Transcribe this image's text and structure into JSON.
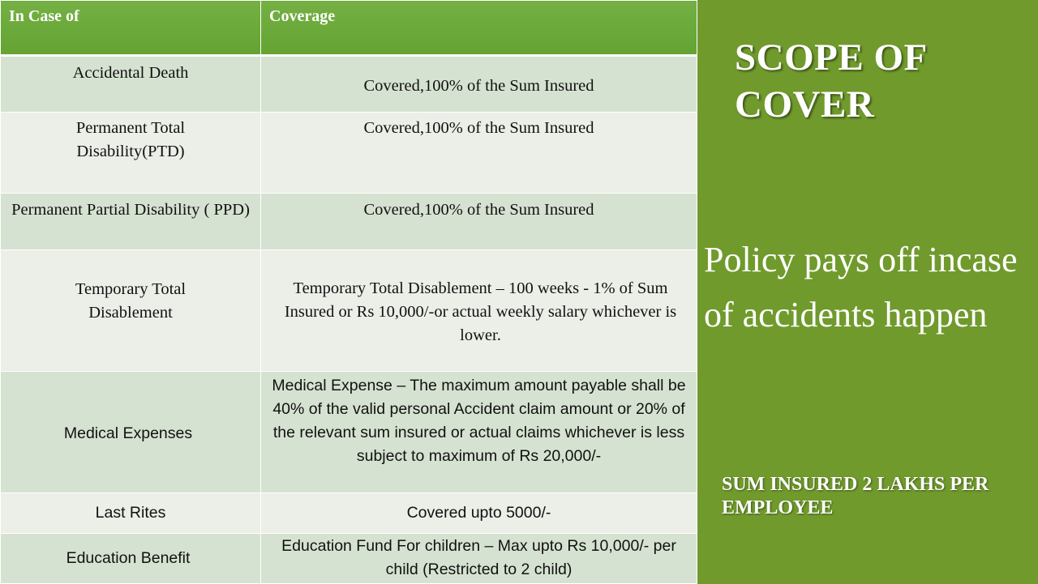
{
  "table": {
    "headers": [
      "In Case of",
      "Coverage"
    ],
    "rows": [
      {
        "case": "Accidental Death",
        "coverage": "Covered,100% of the Sum Insured"
      },
      {
        "case": "Permanent Total Disability(PTD)",
        "coverage": "Covered,100% of the Sum Insured"
      },
      {
        "case": "Permanent Partial Disability ( PPD)",
        "coverage": "Covered,100% of the Sum Insured"
      },
      {
        "case": "Temporary Total Disablement",
        "coverage": "Temporary Total Disablement – 100 weeks - 1% of Sum Insured or Rs 10,000/-or actual weekly salary whichever is lower."
      },
      {
        "case": "Medical Expenses",
        "coverage": "Medical Expense – The maximum amount payable shall be 40% of the valid personal Accident claim amount or 20% of the relevant sum insured or actual claims whichever is less subject to maximum of Rs 20,000/-"
      },
      {
        "case": "Last Rites",
        "coverage": "Covered upto 5000/-"
      },
      {
        "case": "Education Benefit",
        "coverage": "Education Fund For children – Max upto Rs 10,000/- per child (Restricted to 2 child)"
      }
    ]
  },
  "side": {
    "title": "SCOPE OF COVER",
    "body": "Policy pays off incase of accidents happen",
    "sum_insured": "SUM INSURED 2 LAKHS PER EMPLOYEE"
  },
  "colors": {
    "header_green": "#6aa83a",
    "side_green": "#709a2c",
    "row_dark": "#d6e2d1",
    "row_light": "#ebefe8"
  }
}
